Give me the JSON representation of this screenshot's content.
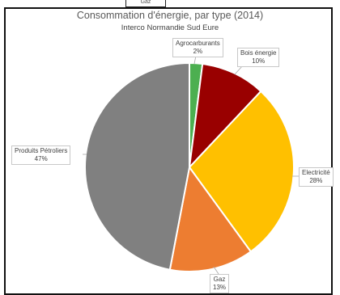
{
  "top_box_text": "Gaz",
  "chart_data": {
    "type": "pie",
    "title": "Consommation d'énergie, par type (2014)",
    "subtitle": "Interco Normandie Sud Eure",
    "slices": [
      {
        "label": "Agrocarburants",
        "value": 2,
        "value_label": "2%",
        "color": "#4CAF50"
      },
      {
        "label": "Bois énergie",
        "value": 10,
        "value_label": "10%",
        "color": "#990000"
      },
      {
        "label": "Electricité",
        "value": 28,
        "value_label": "28%",
        "color": "#FFC000"
      },
      {
        "label": "Gaz",
        "value": 13,
        "value_label": "13%",
        "color": "#ED7D31"
      },
      {
        "label": "Produits Pétroliers",
        "value": 47,
        "value_label": "47%",
        "color": "#808080"
      }
    ],
    "legend": "none"
  }
}
